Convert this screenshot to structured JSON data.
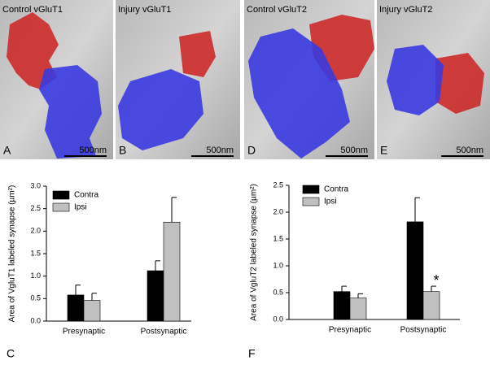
{
  "panels": [
    {
      "letter": "A",
      "label": "Control vGluT1",
      "scale": "500nm"
    },
    {
      "letter": "B",
      "label": "Injury vGluT1",
      "scale": "500nm"
    },
    {
      "letter": "D",
      "label": "Control vGluT2",
      "scale": "500nm"
    },
    {
      "letter": "E",
      "label": "Injury vGluT2",
      "scale": "500nm"
    }
  ],
  "chart_data": [
    {
      "type": "bar",
      "panel_label": "C",
      "ylabel": "Area of VgluT1 labeled synapse (µm²)",
      "categories": [
        "Presynaptic",
        "Postsynaptic"
      ],
      "series": [
        {
          "name": "Contra",
          "color": "#000000",
          "values": [
            0.58,
            1.12
          ],
          "errors": [
            0.22,
            0.22
          ]
        },
        {
          "name": "Ipsi",
          "color": "#c0c0c0",
          "values": [
            0.46,
            2.2
          ],
          "errors": [
            0.16,
            0.55
          ]
        }
      ],
      "ylim": [
        0,
        3.0
      ],
      "yticks": [
        {
          "value": 0,
          "label": "0.0"
        },
        {
          "value": 0.5,
          "label": "0.5"
        },
        {
          "value": 1,
          "label": "1.0"
        },
        {
          "value": 1.5,
          "label": "1.5"
        },
        {
          "value": 2,
          "label": "2.0"
        },
        {
          "value": 2.5,
          "label": "2.5"
        },
        {
          "value": 3,
          "label": "3.0"
        }
      ]
    },
    {
      "type": "bar",
      "panel_label": "F",
      "ylabel": "Area of VgluT2 labeled synapse (µm²)",
      "categories": [
        "Presynaptic",
        "Postsynaptic"
      ],
      "series": [
        {
          "name": "Contra",
          "color": "#000000",
          "values": [
            0.52,
            1.82
          ],
          "errors": [
            0.1,
            0.45
          ]
        },
        {
          "name": "Ipsi",
          "color": "#c0c0c0",
          "values": [
            0.4,
            0.52
          ],
          "errors": [
            0.08,
            0.1
          ]
        }
      ],
      "ylim": [
        0,
        2.5
      ],
      "yticks": [
        {
          "value": 0,
          "label": "0.0"
        },
        {
          "value": 0.5,
          "label": "0.5"
        },
        {
          "value": 1,
          "label": "1.0"
        },
        {
          "value": 1.5,
          "label": "1.5"
        },
        {
          "value": 2,
          "label": "2.0"
        },
        {
          "value": 2.5,
          "label": "2.5"
        }
      ],
      "annotation": "*"
    }
  ]
}
